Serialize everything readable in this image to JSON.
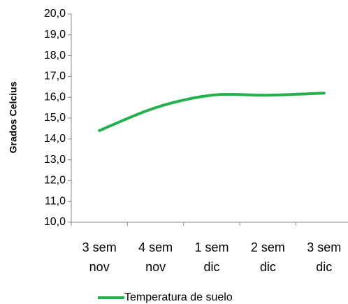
{
  "chart_data": {
    "type": "line",
    "y_label": "Grados Celcius",
    "categories": [
      "3 sem nov",
      "4 sem nov",
      "1 sem dic",
      "2 sem dic",
      "3 sem dic"
    ],
    "series": [
      {
        "name": "Temperatura de suelo",
        "color": "#22b14c",
        "values": [
          14.4,
          15.5,
          16.1,
          16.1,
          16.2
        ]
      }
    ],
    "ylim": [
      10,
      20
    ],
    "yticks": [
      {
        "value": 10,
        "label": "10,0"
      },
      {
        "value": 11,
        "label": "11,0"
      },
      {
        "value": 12,
        "label": "12,0"
      },
      {
        "value": 13,
        "label": "13,0"
      },
      {
        "value": 14,
        "label": "14,0"
      },
      {
        "value": 15,
        "label": "15,0"
      },
      {
        "value": 16,
        "label": "16,0"
      },
      {
        "value": 17,
        "label": "17,0"
      },
      {
        "value": 18,
        "label": "18,0"
      },
      {
        "value": 19,
        "label": "19,0"
      },
      {
        "value": 20,
        "label": "20,0"
      }
    ],
    "smooth": true,
    "grid": false
  }
}
